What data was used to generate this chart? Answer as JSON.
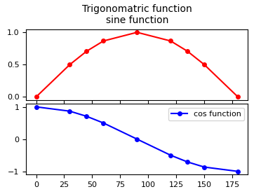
{
  "title_line1": "Trigonomatric function",
  "title_line2": "sine function",
  "x_degrees": [
    0,
    30,
    45,
    60,
    90,
    120,
    135,
    150,
    180
  ],
  "sine_values": [
    0.0,
    0.5,
    0.7071067811865476,
    0.8660254037844386,
    1.0,
    0.8660254037844387,
    0.7071067811865476,
    0.5,
    0.0
  ],
  "cosine_values": [
    1.0,
    0.8660254037844387,
    0.7071067811865476,
    0.5,
    0.0,
    -0.5,
    -0.7071067811865476,
    -0.8660254037844387,
    -1.0
  ],
  "sine_color": "red",
  "cosine_color": "blue",
  "cosine_label": "cos function",
  "title_fontsize": 10,
  "tick_labelsize": 8,
  "legend_fontsize": 8,
  "figsize": [
    3.72,
    2.77
  ],
  "dpi": 100
}
